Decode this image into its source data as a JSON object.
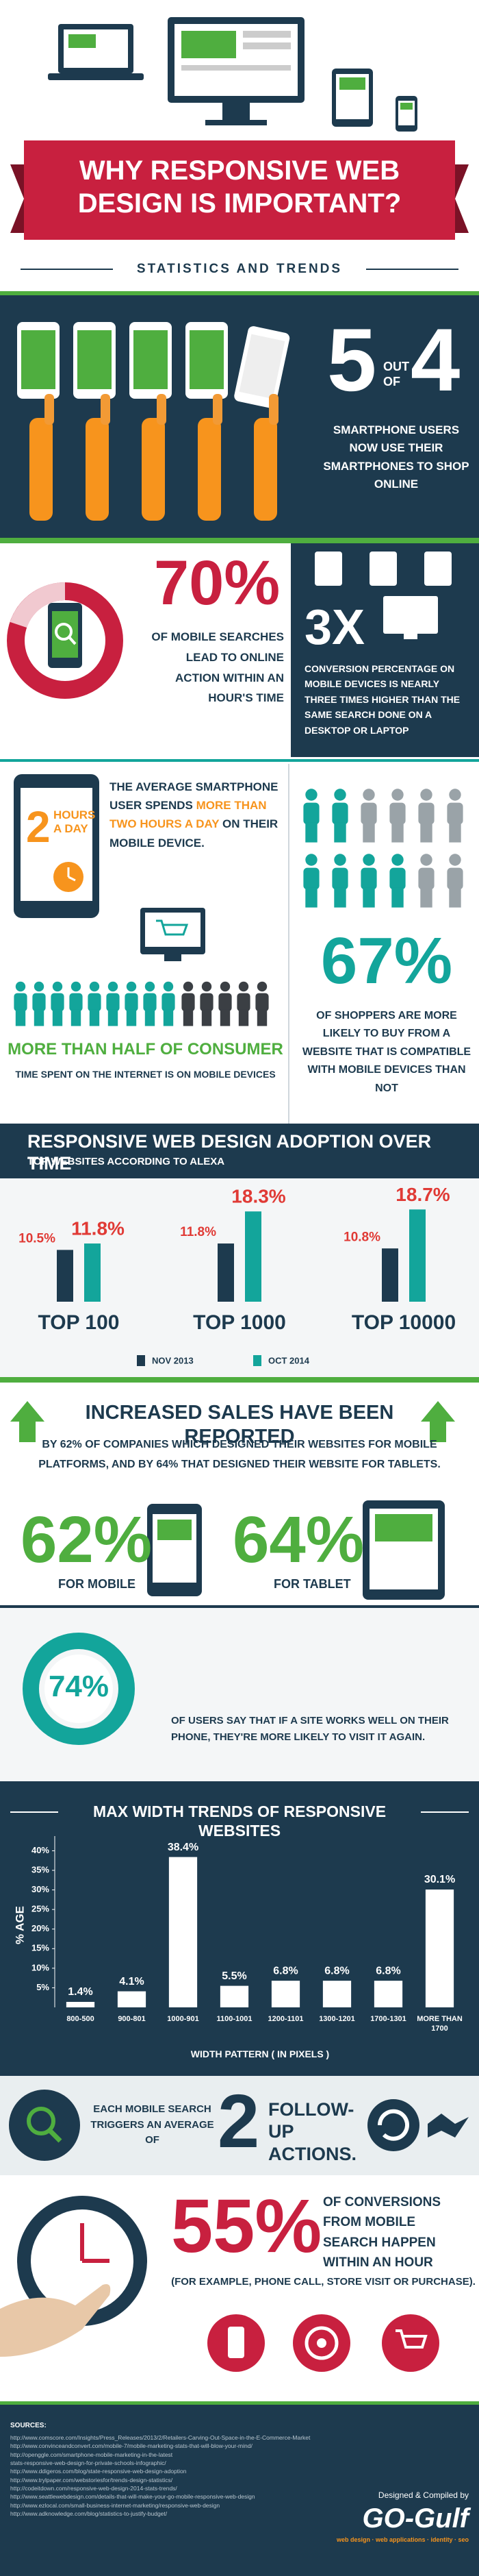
{
  "header": {
    "title": "WHY RESPONSIVE WEB DESIGN IS IMPORTANT?",
    "subtitle": "STATISTICS AND TRENDS"
  },
  "stat_5_of_4": {
    "first": "5",
    "out_of": "OUT OF",
    "second": "4",
    "text": "SMARTPHONE USERS NOW USE THEIR SMARTPHONES TO SHOP ONLINE"
  },
  "stat_70": {
    "value": "70%",
    "text": "OF MOBILE SEARCHES LEAD TO ONLINE ACTION WITHIN AN HOUR'S TIME"
  },
  "stat_3x": {
    "value": "3X",
    "text": "CONVERSION PERCENTAGE ON MOBILE DEVICES IS NEARLY THREE TIMES HIGHER THAN THE SAME SEARCH DONE ON A DESKTOP OR LAPTOP"
  },
  "stat_hours": {
    "number": "2",
    "unit": "HOURS A DAY",
    "text_parts": [
      "THE AVERAGE SMARTPHONE USER SPENDS ",
      "MORE THAN TWO HOURS A DAY",
      " ON THEIR MOBILE DEVICE."
    ]
  },
  "stat_half": {
    "headline": "MORE THAN HALF OF CONSUMER",
    "text": "TIME SPENT ON THE INTERNET IS ON MOBILE DEVICES"
  },
  "stat_67": {
    "value": "67%",
    "text": "OF SHOPPERS ARE MORE LIKELY TO BUY FROM A WEBSITE THAT IS COMPATIBLE WITH MOBILE DEVICES THAN NOT"
  },
  "chart_data": [
    {
      "type": "bar",
      "title": "RESPONSIVE WEB DESIGN ADOPTION OVER TIME",
      "subtitle": "TOP WEBSITES ACCORDING TO ALEXA",
      "categories": [
        "TOP 100",
        "TOP 1000",
        "TOP 10000"
      ],
      "series": [
        {
          "name": "NOV 2013",
          "color": "#1d3a4e",
          "values": [
            10.5,
            11.8,
            10.8
          ],
          "value_labels": [
            "10.5%",
            "11.8%",
            "10.8%"
          ]
        },
        {
          "name": "OCT 2014",
          "color": "#13a59b",
          "values": [
            11.8,
            18.3,
            18.7
          ],
          "value_labels": [
            "11.8%",
            "18.3%",
            "18.7%"
          ]
        }
      ]
    },
    {
      "type": "bar",
      "title": "MAX WIDTH TRENDS OF RESPONSIVE WEBSITES",
      "y_label": "% AGE",
      "x_label": "WIDTH PATTERN ( IN PIXELS )",
      "categories": [
        "800-500",
        "900-801",
        "1000-901",
        "1100-1001",
        "1200-1101",
        "1300-1201",
        "1700-1301",
        "MORE THAN 1700"
      ],
      "values": [
        1.4,
        4.1,
        38.4,
        5.5,
        6.8,
        6.8,
        6.8,
        30.1
      ],
      "value_labels": [
        "1.4%",
        "4.1%",
        "38.4%",
        "5.5%",
        "6.8%",
        "6.8%",
        "6.8%",
        "30.1%"
      ],
      "color": "#ffffff",
      "ylim": [
        0,
        42
      ],
      "yticks": [
        {
          "value": 5,
          "label": "5%"
        },
        {
          "value": 10,
          "label": "10%"
        },
        {
          "value": 15,
          "label": "15%"
        },
        {
          "value": 20,
          "label": "20%"
        },
        {
          "value": 25,
          "label": "25%"
        },
        {
          "value": 30,
          "label": "30%"
        },
        {
          "value": 35,
          "label": "35%"
        },
        {
          "value": 40,
          "label": "40%"
        }
      ]
    }
  ],
  "sales": {
    "title": "INCREASED SALES HAVE BEEN REPORTED",
    "text": "BY 62% OF COMPANIES WHICH DESIGNED THEIR WEBSITES FOR MOBILE PLATFORMS, AND BY 64% THAT DESIGNED THEIR WEBSITE FOR TABLETS.",
    "mobile": {
      "value": "62%",
      "label": "FOR MOBILE"
    },
    "tablet": {
      "value": "64%",
      "label": "FOR TABLET"
    }
  },
  "stat_74": {
    "value": "74%",
    "text": "OF USERS SAY THAT IF A SITE WORKS WELL ON THEIR PHONE, THEY'RE MORE LIKELY TO VISIT IT AGAIN."
  },
  "follow_up": {
    "before": "EACH MOBILE SEARCH TRIGGERS AN AVERAGE OF",
    "number": "2",
    "after": "FOLLOW-UP ACTIONS."
  },
  "stat_55": {
    "value": "55%",
    "text": "OF CONVERSIONS FROM MOBILE SEARCH HAPPEN WITHIN AN HOUR",
    "example": "(FOR EXAMPLE, PHONE CALL, STORE VISIT OR PURCHASE)."
  },
  "footer": {
    "sources_title": "SOURCES:",
    "sources": [
      "http://www.comscore.com/Insights/Press_Releases/2013/2/Retailers-Carving-Out-Space-in-the-E-Commerce-Market",
      "http://www.convinceandconvert.com/mobile-7/mobile-marketing-stats-that-will-blow-your-mind/",
      "http://openggle.com/smartphone-mobile-marketing-in-the-latest",
      "stats-responsive-web-design-for-private-schools-infographic/",
      "http://www.ddigeros.com/blog/state-responsive-web-design-adoption",
      "http://www.trylpaper.com/webstoriesfor/trends-design-statistics/",
      "http://codeitdown.com/responsive-web-design-2014-stats-trends/",
      "http://www.seattlewebdesign.com/details-that-will-make-your-go-mobile-responsive-web-design",
      "http://www.ezlocal.com/small-business-internet-marketing/responsive-web-design",
      "http://www.adknowledge.com/blog/statistics-to-justify-budget/"
    ],
    "credit": "Designed & Compiled by",
    "brand": "GO-Gulf",
    "tagline": "web design · web applications · identity · seo"
  }
}
